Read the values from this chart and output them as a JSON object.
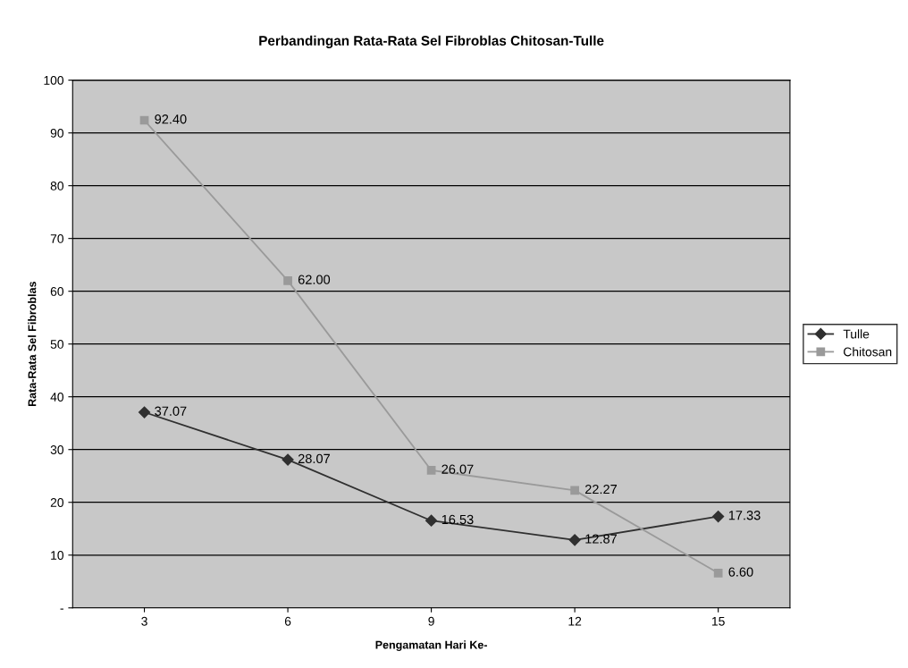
{
  "chart_data": {
    "type": "line",
    "title": "Perbandingan Rata-Rata Sel Fibroblas Chitosan-Tulle",
    "xlabel": "Pengamatan Hari Ke-",
    "ylabel": "Rata-Rata Sel Fibroblas",
    "categories": [
      "3",
      "6",
      "9",
      "12",
      "15"
    ],
    "series": [
      {
        "name": "Tulle",
        "color": "#303030",
        "marker": "diamond",
        "values": [
          37.07,
          28.07,
          16.53,
          12.87,
          17.33
        ],
        "value_labels": [
          "37.07",
          "28.07",
          "16.53",
          "12.87",
          "17.33"
        ]
      },
      {
        "name": "Chitosan",
        "color": "#9a9a9a",
        "marker": "square",
        "values": [
          92.4,
          62.0,
          26.07,
          22.27,
          6.6
        ],
        "value_labels": [
          "92.40",
          "62.00",
          "26.07",
          "22.27",
          "6.60"
        ]
      }
    ],
    "ylim": [
      0,
      100
    ],
    "yticks": [
      {
        "value": 0,
        "label": "-"
      },
      10,
      20,
      30,
      40,
      50,
      60,
      70,
      80,
      90,
      100
    ],
    "grid": "y",
    "legend": "right",
    "line_style": "solid"
  }
}
